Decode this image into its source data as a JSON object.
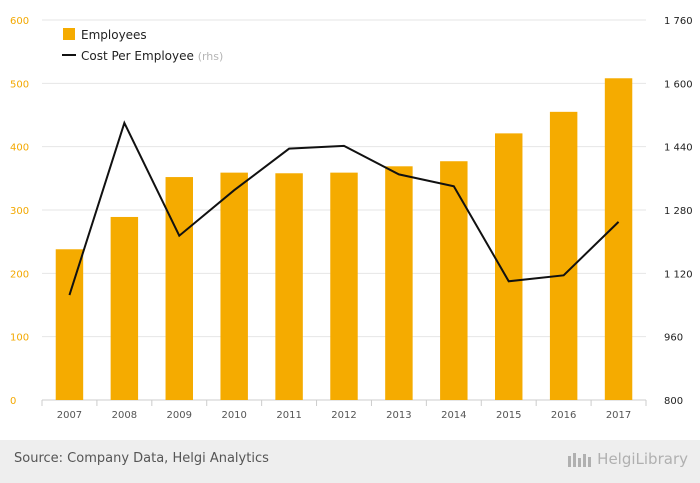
{
  "chart_data": {
    "type": "bar",
    "categories": [
      "2007",
      "2008",
      "2009",
      "2010",
      "2011",
      "2012",
      "2013",
      "2014",
      "2015",
      "2016",
      "2017"
    ],
    "series": [
      {
        "name": "Employees",
        "type": "bar",
        "axis": "left",
        "color": "#f5ab00",
        "values": [
          238,
          289,
          352,
          359,
          358,
          359,
          369,
          377,
          421,
          455,
          508
        ]
      },
      {
        "name": "Cost Per Employee",
        "name_suffix": "(rhs)",
        "type": "line",
        "axis": "right",
        "color": "#111111",
        "values": [
          1065,
          1500,
          1215,
          1330,
          1435,
          1442,
          1370,
          1340,
          1100,
          1115,
          1250
        ]
      }
    ],
    "ylim_left": [
      0,
      600
    ],
    "yticks_left": [
      0,
      100,
      200,
      300,
      400,
      500,
      600
    ],
    "ylim_right": [
      800,
      1760
    ],
    "yticks_right": [
      "800",
      "960",
      "1 120",
      "1 280",
      "1 440",
      "1 600",
      "1 760"
    ],
    "grid": true,
    "legend_position": "top-left"
  },
  "footer": {
    "source": "Source: Company Data, Helgi Analytics",
    "brand": "HelgiLibrary"
  },
  "colors": {
    "bar": "#f5ab00",
    "line": "#111111",
    "left_axis_text": "#f3a800",
    "grid": "#e6e6e6",
    "footer_bg": "#eeeeee"
  }
}
